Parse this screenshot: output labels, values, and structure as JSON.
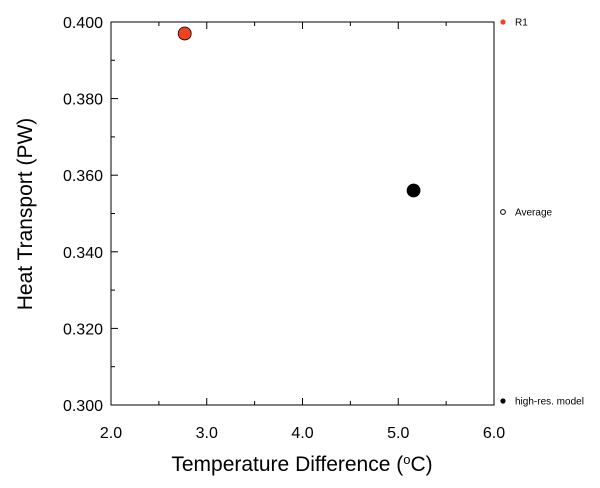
{
  "chart_data": {
    "type": "scatter",
    "xlabel_main": "Temperature Difference (",
    "xlabel_sup": "o",
    "xlabel_unit": "C)",
    "ylabel": "Heat Transport (PW)",
    "xlim": [
      2.0,
      6.0
    ],
    "ylim": [
      0.3,
      0.4
    ],
    "x_ticks": [
      "2.0",
      "3.0",
      "4.0",
      "5.0",
      "6.0"
    ],
    "y_ticks": [
      "0.300",
      "0.320",
      "0.340",
      "0.360",
      "0.380",
      "0.400"
    ],
    "grid": false,
    "points": [
      {
        "name": "R1",
        "x": 2.77,
        "y": 0.397,
        "color": "#f2421f"
      },
      {
        "name": "high-res. model",
        "x": 5.16,
        "y": 0.356,
        "color": "#000000"
      }
    ],
    "legend": [
      {
        "label": "R1",
        "marker": "filled",
        "color": "#f2421f"
      },
      {
        "label": "Average",
        "marker": "open",
        "color": "#000000"
      },
      {
        "label": "high-res. model",
        "marker": "filled",
        "color": "#000000"
      }
    ],
    "legend_placement": "right"
  }
}
